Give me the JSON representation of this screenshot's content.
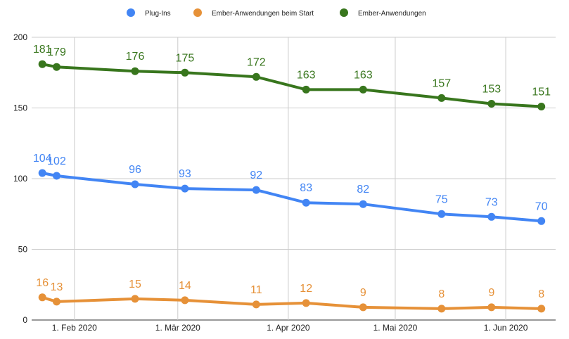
{
  "chart_data": {
    "type": "line",
    "title": "",
    "xlabel": "",
    "ylabel": "",
    "ylim": [
      0,
      200
    ],
    "y_ticks": [
      0,
      50,
      100,
      150,
      200
    ],
    "grid": true,
    "legend_position": "top",
    "x": [
      "2020-01-23",
      "2020-01-27",
      "2020-02-18",
      "2020-03-03",
      "2020-03-23",
      "2020-04-06",
      "2020-04-22",
      "2020-05-14",
      "2020-05-28",
      "2020-06-11"
    ],
    "x_ticks": [
      {
        "date": "2020-02-01",
        "label": "1. Feb 2020"
      },
      {
        "date": "2020-03-01",
        "label": "1. Mär 2020"
      },
      {
        "date": "2020-04-01",
        "label": "1. Apr 2020"
      },
      {
        "date": "2020-05-01",
        "label": "1. Mai 2020"
      },
      {
        "date": "2020-06-01",
        "label": "1. Jun 2020"
      }
    ],
    "series": [
      {
        "name": "Plug-Ins",
        "color": "#4285f4",
        "values": [
          104,
          102,
          96,
          93,
          92,
          83,
          82,
          75,
          73,
          70
        ]
      },
      {
        "name": "Ember-Anwendungen beim Start",
        "color": "#e69138",
        "values": [
          16,
          13,
          15,
          14,
          11,
          12,
          9,
          8,
          9,
          8
        ]
      },
      {
        "name": "Ember-Anwendungen",
        "color": "#38761d",
        "values": [
          181,
          179,
          176,
          175,
          172,
          163,
          163,
          157,
          153,
          151
        ]
      }
    ]
  }
}
